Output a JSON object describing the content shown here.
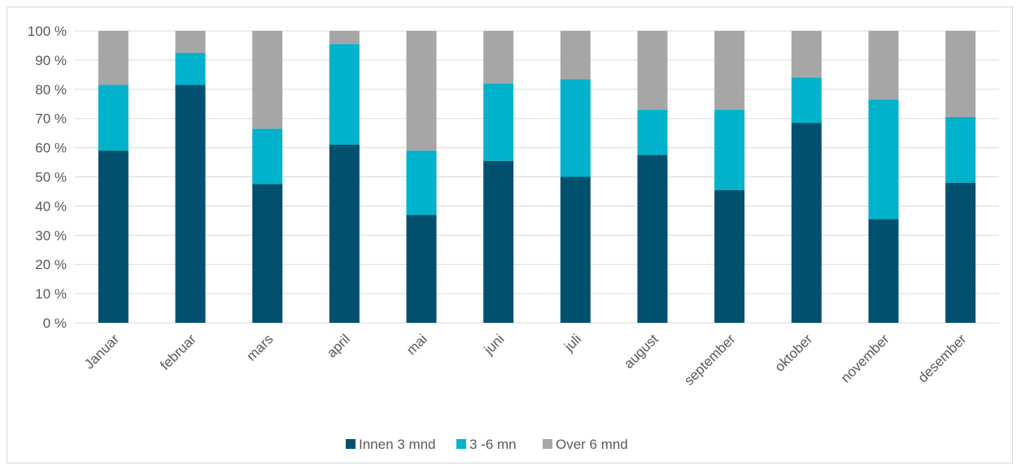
{
  "chart_data": {
    "type": "bar",
    "stacked": true,
    "percent": true,
    "categories": [
      "Januar",
      "februar",
      "mars",
      "april",
      "mai",
      "juni",
      "juli",
      "august",
      "september",
      "oktober",
      "november",
      "desember"
    ],
    "series": [
      {
        "name": "Innen 3 mnd",
        "color": "#00506e",
        "values": [
          59,
          81.5,
          47.5,
          61,
          37,
          55.5,
          50,
          57.5,
          45.5,
          68.5,
          35.5,
          48
        ]
      },
      {
        "name": "3 -6 mn",
        "color": "#00b2cb",
        "values": [
          22.5,
          11,
          19,
          34.5,
          22,
          26.5,
          33.5,
          15.5,
          27.5,
          15.5,
          41,
          22.5
        ]
      },
      {
        "name": "Over 6 mnd",
        "color": "#a6a6a6",
        "values": [
          18.5,
          7.5,
          33.5,
          4.5,
          41,
          18,
          16.5,
          27,
          27,
          16,
          23.5,
          29.5
        ]
      }
    ],
    "yticks": [
      "0 %",
      "10 %",
      "20 %",
      "30 %",
      "40 %",
      "50 %",
      "60 %",
      "70 %",
      "80 %",
      "90 %",
      "100 %"
    ],
    "ylim": [
      0,
      100
    ],
    "grid": true,
    "legend": "bottom"
  }
}
